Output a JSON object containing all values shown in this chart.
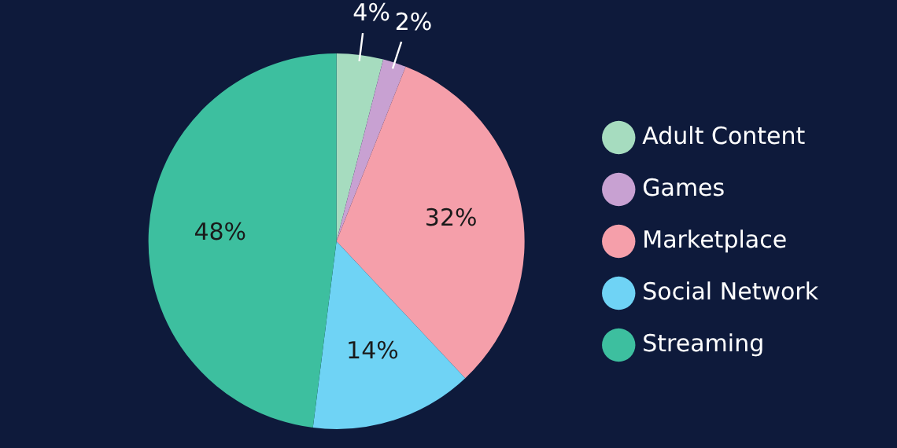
{
  "chart_data": {
    "type": "pie",
    "categories": [
      "Adult Content",
      "Games",
      "Marketplace",
      "Social Network",
      "Streaming"
    ],
    "values": [
      4,
      2,
      32,
      14,
      48
    ],
    "colors": [
      "#a6dcbf",
      "#c8a1d2",
      "#f59faa",
      "#6fd3f5",
      "#3dbf9f"
    ],
    "value_labels": [
      "4%",
      "2%",
      "32%",
      "14%",
      "48%"
    ],
    "legend": "right"
  }
}
